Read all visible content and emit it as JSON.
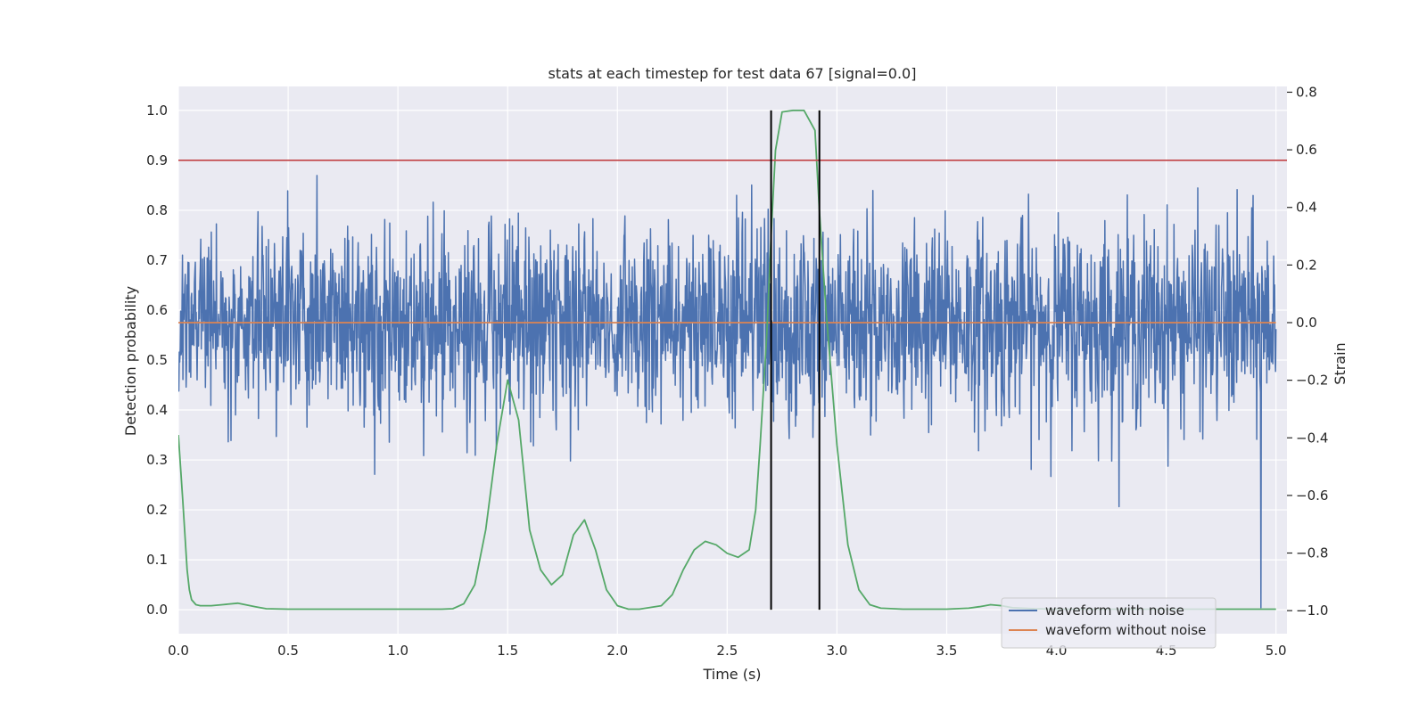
{
  "chart_data": {
    "type": "line",
    "title": "stats at each timestep for test data 67 [signal=0.0]",
    "xlabel": "Time (s)",
    "ylabel": "Detection probability",
    "ylabel_right": "Strain",
    "xlim": [
      0.0,
      5.05
    ],
    "ylim": [
      -0.048,
      1.048
    ],
    "ylim_right": [
      -1.08,
      0.82
    ],
    "x_ticks": [
      "0.0",
      "0.5",
      "1.0",
      "1.5",
      "2.0",
      "2.5",
      "3.0",
      "3.5",
      "4.0",
      "4.5",
      "5.0"
    ],
    "y_ticks": [
      "0.0",
      "0.1",
      "0.2",
      "0.3",
      "0.4",
      "0.5",
      "0.6",
      "0.7",
      "0.8",
      "0.9",
      "1.0"
    ],
    "y_ticks_right": [
      "−1.0",
      "−0.8",
      "−0.6",
      "−0.4",
      "−0.2",
      "0.0",
      "0.2",
      "0.4",
      "0.6",
      "0.8"
    ],
    "grid": true,
    "background": "#eaeaf2",
    "legend_position": "lower-right",
    "legend": [
      {
        "label": "waveform with noise",
        "color": "#4c72b0"
      },
      {
        "label": "waveform without noise",
        "color": "#dd8452"
      }
    ],
    "threshold": {
      "value": 0.9,
      "color": "#c44e52"
    },
    "event_markers": {
      "x": [
        2.7,
        2.92
      ],
      "y_range": [
        0.0,
        1.0
      ],
      "color": "#000000"
    },
    "series": [
      {
        "name": "waveform with noise",
        "axis": "right",
        "color": "#4c72b0",
        "noise": {
          "samples": 2400,
          "std": 0.17,
          "min": -0.99,
          "max": 0.73,
          "x_range": [
            0.0,
            5.0
          ]
        }
      },
      {
        "name": "waveform without noise",
        "axis": "right",
        "color": "#dd8452",
        "x": [
          0.0,
          5.0
        ],
        "values": [
          0.0,
          0.0
        ]
      },
      {
        "axis": "left",
        "color": "#55a868",
        "x": [
          0.0,
          0.02,
          0.04,
          0.05,
          0.06,
          0.08,
          0.1,
          0.15,
          0.2,
          0.27,
          0.35,
          0.4,
          0.5,
          1.0,
          1.2,
          1.25,
          1.3,
          1.35,
          1.4,
          1.45,
          1.5,
          1.55,
          1.6,
          1.65,
          1.7,
          1.75,
          1.8,
          1.85,
          1.9,
          1.95,
          2.0,
          2.05,
          2.1,
          2.2,
          2.25,
          2.3,
          2.35,
          2.4,
          2.45,
          2.5,
          2.55,
          2.6,
          2.63,
          2.65,
          2.68,
          2.7,
          2.72,
          2.75,
          2.8,
          2.85,
          2.9,
          2.92,
          2.95,
          3.0,
          3.05,
          3.1,
          3.15,
          3.2,
          3.3,
          3.5,
          3.6,
          3.65,
          3.7,
          3.75,
          3.8,
          3.9,
          4.0,
          4.1,
          4.5,
          5.0
        ],
        "values": [
          0.35,
          0.22,
          0.08,
          0.04,
          0.02,
          0.01,
          0.008,
          0.008,
          0.01,
          0.013,
          0.006,
          0.002,
          0.001,
          0.001,
          0.001,
          0.002,
          0.012,
          0.05,
          0.16,
          0.33,
          0.46,
          0.38,
          0.16,
          0.08,
          0.05,
          0.07,
          0.15,
          0.18,
          0.12,
          0.04,
          0.008,
          0.001,
          0.001,
          0.008,
          0.03,
          0.08,
          0.12,
          0.137,
          0.13,
          0.113,
          0.105,
          0.12,
          0.2,
          0.33,
          0.55,
          0.75,
          0.92,
          0.997,
          1.0,
          1.0,
          0.96,
          0.8,
          0.6,
          0.33,
          0.13,
          0.04,
          0.01,
          0.003,
          0.001,
          0.001,
          0.003,
          0.006,
          0.01,
          0.008,
          0.004,
          0.002,
          0.001,
          0.001,
          0.001,
          0.001
        ]
      }
    ]
  }
}
